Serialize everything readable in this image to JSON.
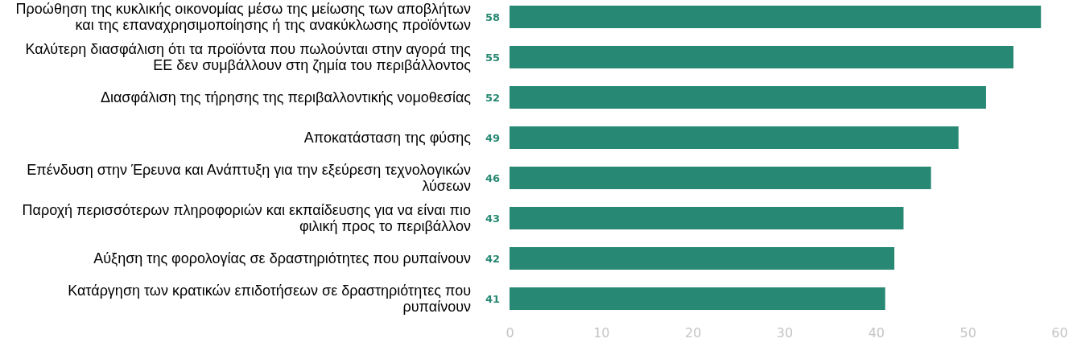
{
  "chart_data": {
    "type": "bar",
    "orientation": "horizontal",
    "categories": [
      "Προώθηση της κυκλικής οικονομίας μέσω της μείωσης των αποβλήτων και της επαναχρησιμοποίησης ή της ανακύκλωσης προϊόντων",
      "Καλύτερη διασφάλιση ότι τα προϊόντα που πωλούνται στην αγορά της ΕΕ δεν συμβάλλουν στη ζημία του περιβάλλοντος",
      "Διασφάλιση της τήρησης της περιβαλλοντικής νομοθεσίας",
      "Αποκατάσταση της φύσης",
      "Επένδυση στην Έρευνα και Ανάπτυξη για την εξεύρεση τεχνολογικών λύσεων",
      "Παροχή περισσότερων πληροφοριών και εκπαίδευσης για να είναι πιο φιλική προς το περιβάλλον",
      "Αύξηση της φορολογίας σε δραστηριότητες που ρυπαίνουν",
      "Κατάργηση των κρατικών επιδοτήσεων σε δραστηριότητες που ρυπαίνουν"
    ],
    "values": [
      58,
      55,
      52,
      49,
      46,
      43,
      42,
      41
    ],
    "color": "#278873",
    "xlim": [
      0,
      60
    ],
    "xticks": [
      0,
      10,
      20,
      30,
      40,
      50,
      60
    ],
    "data_labels": true
  }
}
